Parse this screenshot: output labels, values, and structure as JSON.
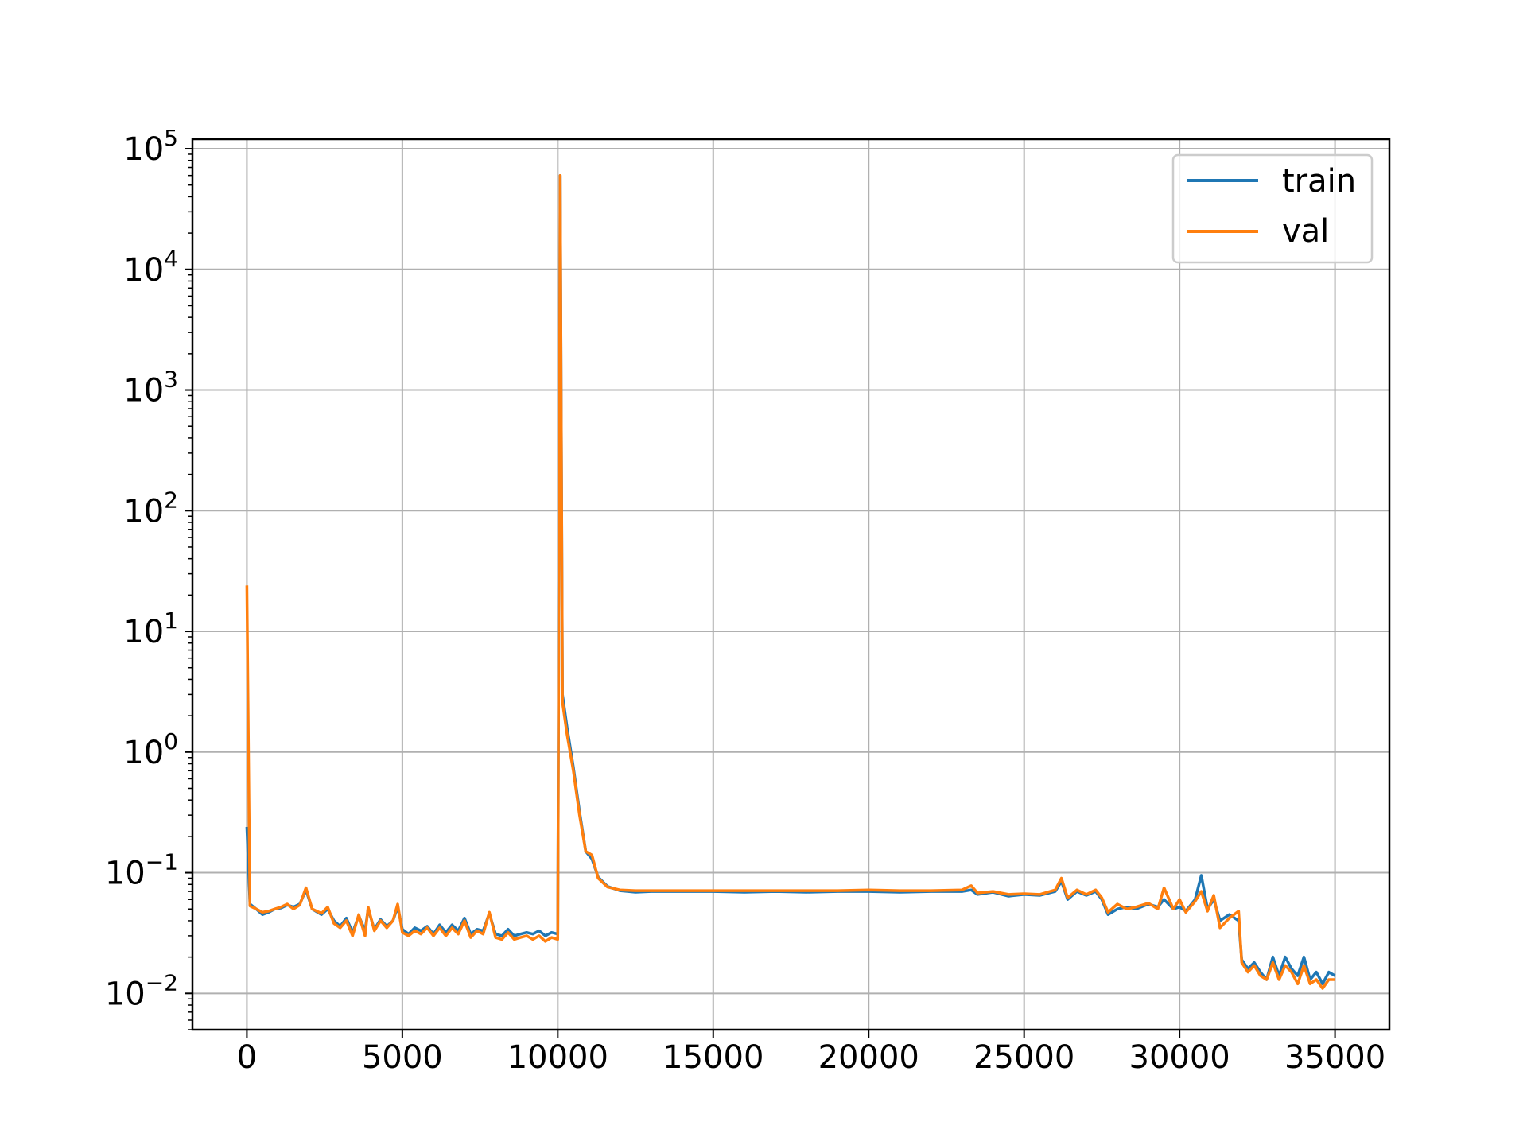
{
  "chart_data": {
    "type": "line",
    "title": "",
    "xlabel": "",
    "ylabel": "",
    "xlim": [
      -1750,
      36750
    ],
    "ylim": [
      0.005,
      120000
    ],
    "yscale": "log",
    "grid": true,
    "legend_position": "top-right",
    "x_ticks": [
      {
        "value": 0,
        "label": "0"
      },
      {
        "value": 5000,
        "label": "5000"
      },
      {
        "value": 10000,
        "label": "10000"
      },
      {
        "value": 15000,
        "label": "15000"
      },
      {
        "value": 20000,
        "label": "20000"
      },
      {
        "value": 25000,
        "label": "25000"
      },
      {
        "value": 30000,
        "label": "30000"
      },
      {
        "value": 35000,
        "label": "35000"
      }
    ],
    "y_ticks": [
      {
        "value": 0.01,
        "base": "10",
        "exp": "−2"
      },
      {
        "value": 0.1,
        "base": "10",
        "exp": "−1"
      },
      {
        "value": 1,
        "base": "10",
        "exp": "0"
      },
      {
        "value": 10,
        "base": "10",
        "exp": "1"
      },
      {
        "value": 100,
        "base": "10",
        "exp": "2"
      },
      {
        "value": 1000,
        "base": "10",
        "exp": "3"
      },
      {
        "value": 10000,
        "base": "10",
        "exp": "4"
      },
      {
        "value": 100000,
        "base": "10",
        "exp": "5"
      }
    ],
    "series": [
      {
        "name": "train",
        "color": "#1f77b4",
        "points": [
          [
            0,
            0.24
          ],
          [
            100,
            0.055
          ],
          [
            300,
            0.05
          ],
          [
            500,
            0.045
          ],
          [
            700,
            0.047
          ],
          [
            900,
            0.05
          ],
          [
            1100,
            0.051
          ],
          [
            1300,
            0.054
          ],
          [
            1500,
            0.052
          ],
          [
            1700,
            0.055
          ],
          [
            1900,
            0.072
          ],
          [
            2100,
            0.05
          ],
          [
            2400,
            0.045
          ],
          [
            2600,
            0.05
          ],
          [
            2800,
            0.04
          ],
          [
            3000,
            0.036
          ],
          [
            3200,
            0.042
          ],
          [
            3400,
            0.032
          ],
          [
            3600,
            0.044
          ],
          [
            3800,
            0.033
          ],
          [
            3900,
            0.05
          ],
          [
            4100,
            0.034
          ],
          [
            4300,
            0.041
          ],
          [
            4500,
            0.036
          ],
          [
            4700,
            0.04
          ],
          [
            4850,
            0.052
          ],
          [
            5000,
            0.034
          ],
          [
            5200,
            0.031
          ],
          [
            5400,
            0.035
          ],
          [
            5600,
            0.033
          ],
          [
            5800,
            0.036
          ],
          [
            6000,
            0.031
          ],
          [
            6200,
            0.037
          ],
          [
            6400,
            0.032
          ],
          [
            6600,
            0.037
          ],
          [
            6800,
            0.033
          ],
          [
            7000,
            0.042
          ],
          [
            7200,
            0.031
          ],
          [
            7400,
            0.034
          ],
          [
            7600,
            0.033
          ],
          [
            7800,
            0.046
          ],
          [
            8000,
            0.031
          ],
          [
            8200,
            0.03
          ],
          [
            8400,
            0.034
          ],
          [
            8600,
            0.03
          ],
          [
            8800,
            0.031
          ],
          [
            9000,
            0.032
          ],
          [
            9200,
            0.031
          ],
          [
            9400,
            0.033
          ],
          [
            9600,
            0.03
          ],
          [
            9800,
            0.032
          ],
          [
            10000,
            0.031
          ],
          [
            10080,
            60000
          ],
          [
            10150,
            3.0
          ],
          [
            10300,
            1.6
          ],
          [
            10500,
            0.75
          ],
          [
            10700,
            0.32
          ],
          [
            10900,
            0.15
          ],
          [
            11100,
            0.13
          ],
          [
            11300,
            0.092
          ],
          [
            11600,
            0.077
          ],
          [
            12000,
            0.071
          ],
          [
            12500,
            0.069
          ],
          [
            13000,
            0.07
          ],
          [
            14000,
            0.07
          ],
          [
            15000,
            0.07
          ],
          [
            16000,
            0.069
          ],
          [
            17000,
            0.07
          ],
          [
            18000,
            0.069
          ],
          [
            19000,
            0.07
          ],
          [
            20000,
            0.07
          ],
          [
            21000,
            0.069
          ],
          [
            22000,
            0.07
          ],
          [
            23000,
            0.07
          ],
          [
            23300,
            0.072
          ],
          [
            23500,
            0.066
          ],
          [
            24000,
            0.069
          ],
          [
            24500,
            0.064
          ],
          [
            25000,
            0.066
          ],
          [
            25500,
            0.065
          ],
          [
            26000,
            0.07
          ],
          [
            26200,
            0.085
          ],
          [
            26400,
            0.06
          ],
          [
            26700,
            0.07
          ],
          [
            27000,
            0.065
          ],
          [
            27300,
            0.07
          ],
          [
            27500,
            0.06
          ],
          [
            27700,
            0.045
          ],
          [
            28000,
            0.05
          ],
          [
            28300,
            0.052
          ],
          [
            28600,
            0.05
          ],
          [
            29000,
            0.055
          ],
          [
            29300,
            0.052
          ],
          [
            29500,
            0.06
          ],
          [
            29800,
            0.05
          ],
          [
            30000,
            0.052
          ],
          [
            30200,
            0.048
          ],
          [
            30500,
            0.06
          ],
          [
            30700,
            0.095
          ],
          [
            30900,
            0.05
          ],
          [
            31100,
            0.06
          ],
          [
            31300,
            0.04
          ],
          [
            31600,
            0.045
          ],
          [
            31900,
            0.04
          ],
          [
            32000,
            0.019
          ],
          [
            32200,
            0.016
          ],
          [
            32400,
            0.018
          ],
          [
            32600,
            0.015
          ],
          [
            32800,
            0.013
          ],
          [
            33000,
            0.02
          ],
          [
            33200,
            0.014
          ],
          [
            33400,
            0.02
          ],
          [
            33600,
            0.016
          ],
          [
            33800,
            0.014
          ],
          [
            34000,
            0.02
          ],
          [
            34200,
            0.013
          ],
          [
            34400,
            0.015
          ],
          [
            34600,
            0.012
          ],
          [
            34800,
            0.015
          ],
          [
            35000,
            0.014
          ]
        ]
      },
      {
        "name": "val",
        "color": "#ff7f0e",
        "points": [
          [
            0,
            24
          ],
          [
            100,
            0.053
          ],
          [
            300,
            0.05
          ],
          [
            500,
            0.047
          ],
          [
            700,
            0.048
          ],
          [
            900,
            0.05
          ],
          [
            1100,
            0.052
          ],
          [
            1300,
            0.055
          ],
          [
            1500,
            0.05
          ],
          [
            1700,
            0.054
          ],
          [
            1900,
            0.075
          ],
          [
            2100,
            0.05
          ],
          [
            2400,
            0.046
          ],
          [
            2600,
            0.052
          ],
          [
            2800,
            0.038
          ],
          [
            3000,
            0.035
          ],
          [
            3200,
            0.04
          ],
          [
            3400,
            0.03
          ],
          [
            3600,
            0.045
          ],
          [
            3800,
            0.03
          ],
          [
            3900,
            0.052
          ],
          [
            4100,
            0.033
          ],
          [
            4300,
            0.04
          ],
          [
            4500,
            0.035
          ],
          [
            4700,
            0.04
          ],
          [
            4850,
            0.055
          ],
          [
            5000,
            0.032
          ],
          [
            5200,
            0.03
          ],
          [
            5400,
            0.033
          ],
          [
            5600,
            0.031
          ],
          [
            5800,
            0.035
          ],
          [
            6000,
            0.03
          ],
          [
            6200,
            0.035
          ],
          [
            6400,
            0.03
          ],
          [
            6600,
            0.035
          ],
          [
            6800,
            0.031
          ],
          [
            7000,
            0.04
          ],
          [
            7200,
            0.029
          ],
          [
            7400,
            0.033
          ],
          [
            7600,
            0.031
          ],
          [
            7800,
            0.047
          ],
          [
            8000,
            0.029
          ],
          [
            8200,
            0.028
          ],
          [
            8400,
            0.032
          ],
          [
            8600,
            0.028
          ],
          [
            8800,
            0.029
          ],
          [
            9000,
            0.03
          ],
          [
            9200,
            0.028
          ],
          [
            9400,
            0.03
          ],
          [
            9600,
            0.027
          ],
          [
            9800,
            0.029
          ],
          [
            10000,
            0.028
          ],
          [
            10080,
            60000
          ],
          [
            10150,
            2.6
          ],
          [
            10300,
            1.4
          ],
          [
            10500,
            0.7
          ],
          [
            10700,
            0.3
          ],
          [
            10900,
            0.15
          ],
          [
            11100,
            0.14
          ],
          [
            11300,
            0.09
          ],
          [
            11600,
            0.076
          ],
          [
            12000,
            0.072
          ],
          [
            12500,
            0.071
          ],
          [
            13000,
            0.071
          ],
          [
            14000,
            0.071
          ],
          [
            15000,
            0.071
          ],
          [
            16000,
            0.071
          ],
          [
            17000,
            0.071
          ],
          [
            18000,
            0.071
          ],
          [
            19000,
            0.071
          ],
          [
            20000,
            0.072
          ],
          [
            21000,
            0.071
          ],
          [
            22000,
            0.071
          ],
          [
            23000,
            0.072
          ],
          [
            23300,
            0.078
          ],
          [
            23500,
            0.068
          ],
          [
            24000,
            0.07
          ],
          [
            24500,
            0.066
          ],
          [
            25000,
            0.067
          ],
          [
            25500,
            0.066
          ],
          [
            26000,
            0.072
          ],
          [
            26200,
            0.09
          ],
          [
            26400,
            0.062
          ],
          [
            26700,
            0.072
          ],
          [
            27000,
            0.066
          ],
          [
            27300,
            0.072
          ],
          [
            27500,
            0.062
          ],
          [
            27700,
            0.047
          ],
          [
            28000,
            0.055
          ],
          [
            28300,
            0.05
          ],
          [
            28600,
            0.052
          ],
          [
            29000,
            0.056
          ],
          [
            29300,
            0.05
          ],
          [
            29500,
            0.075
          ],
          [
            29800,
            0.05
          ],
          [
            30000,
            0.06
          ],
          [
            30200,
            0.047
          ],
          [
            30500,
            0.058
          ],
          [
            30700,
            0.07
          ],
          [
            30900,
            0.048
          ],
          [
            31100,
            0.065
          ],
          [
            31300,
            0.035
          ],
          [
            31600,
            0.042
          ],
          [
            31900,
            0.048
          ],
          [
            32000,
            0.018
          ],
          [
            32200,
            0.015
          ],
          [
            32400,
            0.017
          ],
          [
            32600,
            0.014
          ],
          [
            32800,
            0.013
          ],
          [
            33000,
            0.018
          ],
          [
            33200,
            0.013
          ],
          [
            33400,
            0.017
          ],
          [
            33600,
            0.015
          ],
          [
            33800,
            0.012
          ],
          [
            34000,
            0.017
          ],
          [
            34200,
            0.012
          ],
          [
            34400,
            0.013
          ],
          [
            34600,
            0.011
          ],
          [
            34800,
            0.013
          ],
          [
            35000,
            0.013
          ]
        ]
      }
    ]
  }
}
